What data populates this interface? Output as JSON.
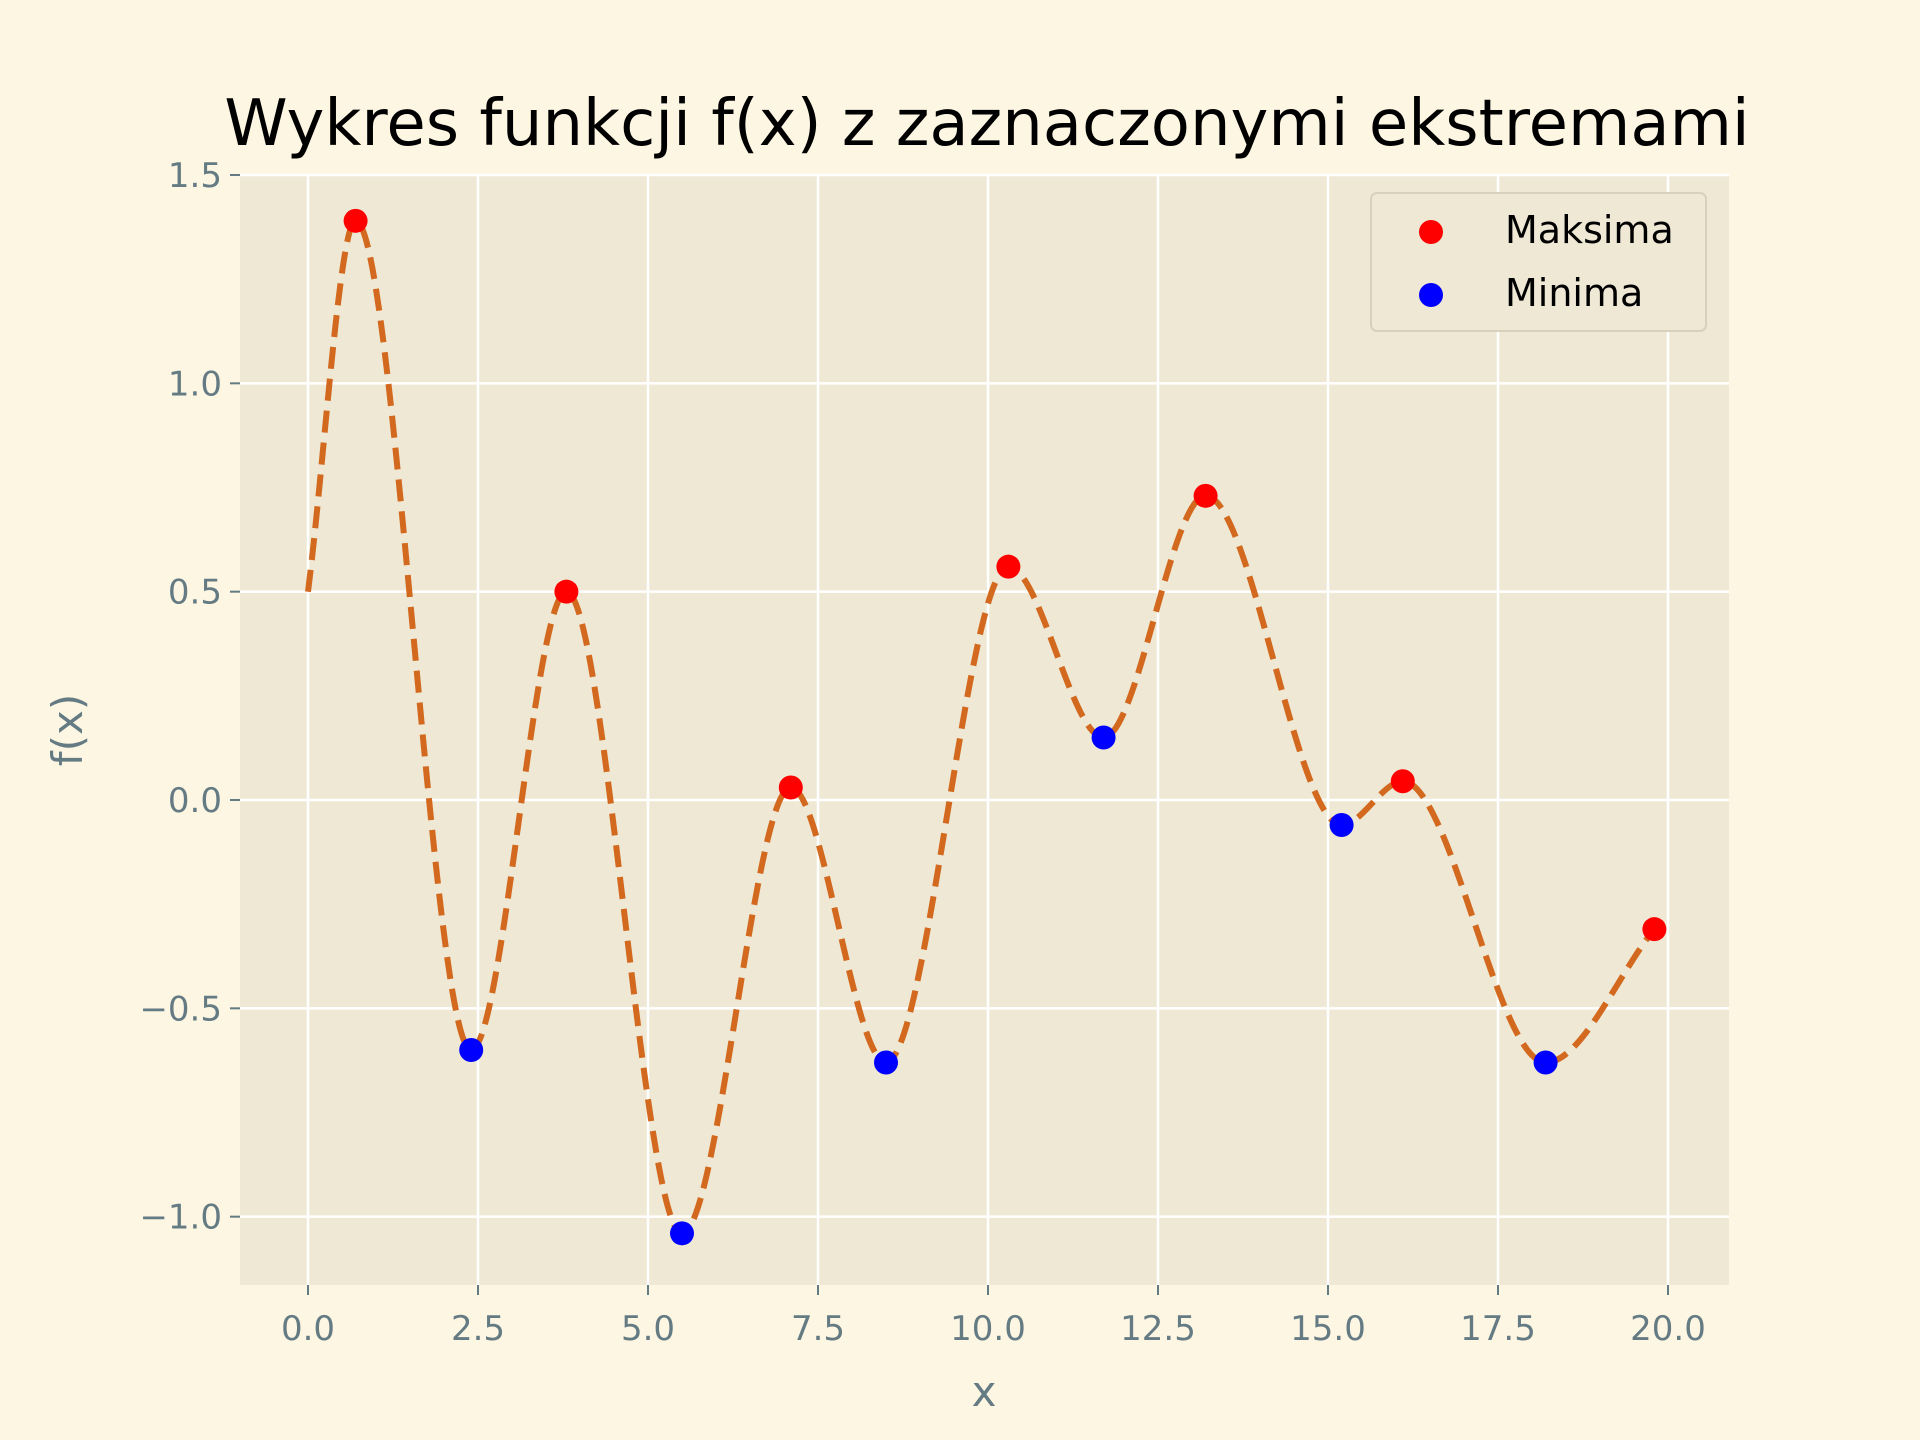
{
  "colors": {
    "figure_background": "#fdf6e3",
    "axes_background": "#eee8d5",
    "grid": "#ffffff",
    "line": "#d2691e",
    "maxima": "#ff0000",
    "minima": "#0000ff",
    "tick_text": "#657b83"
  },
  "chart_data": {
    "type": "line",
    "title": "Wykres funkcji f(x) z zaznaczonymi ekstremami",
    "xlabel": "x",
    "ylabel": "f(x)",
    "xlim": [
      -1.0,
      21.0
    ],
    "ylim": [
      -1.17,
      1.5
    ],
    "x_ticks": [
      0.0,
      2.5,
      5.0,
      7.5,
      10.0,
      12.5,
      15.0,
      17.5,
      20.0
    ],
    "x_tick_labels": [
      "0.0",
      "2.5",
      "5.0",
      "7.5",
      "10.0",
      "12.5",
      "15.0",
      "17.5",
      "20.0"
    ],
    "y_ticks": [
      1.5,
      1.0,
      0.5,
      0.0,
      -0.5,
      -1.0
    ],
    "y_tick_labels": [
      "1.5",
      "1.0",
      "0.5",
      "0.0",
      "−0.5",
      "−1.0"
    ],
    "grid": true,
    "legend": {
      "placement": "top-right",
      "entries": [
        "Maksima",
        "Minima"
      ]
    },
    "line_style": "dashed",
    "series": [
      {
        "type": "line",
        "x": [
          0.0,
          0.7,
          2.4,
          3.8,
          5.5,
          7.1,
          8.5,
          10.3,
          11.7,
          13.2,
          15.2,
          16.1,
          18.2,
          19.8
        ],
        "y": [
          0.5,
          1.39,
          -0.6,
          0.5,
          -1.04,
          0.03,
          -0.63,
          0.56,
          0.15,
          0.73,
          -0.06,
          0.045,
          -0.63,
          -0.31
        ]
      },
      {
        "name": "Maksima",
        "type": "scatter",
        "x": [
          0.7,
          3.8,
          7.1,
          10.3,
          13.2,
          16.1,
          19.8
        ],
        "y": [
          1.39,
          0.5,
          0.03,
          0.56,
          0.73,
          0.045,
          -0.31
        ]
      },
      {
        "name": "Minima",
        "type": "scatter",
        "x": [
          2.4,
          5.5,
          8.5,
          11.7,
          15.2,
          18.2
        ],
        "y": [
          -0.6,
          -1.04,
          -0.63,
          0.15,
          -0.06,
          -0.63
        ]
      }
    ]
  }
}
